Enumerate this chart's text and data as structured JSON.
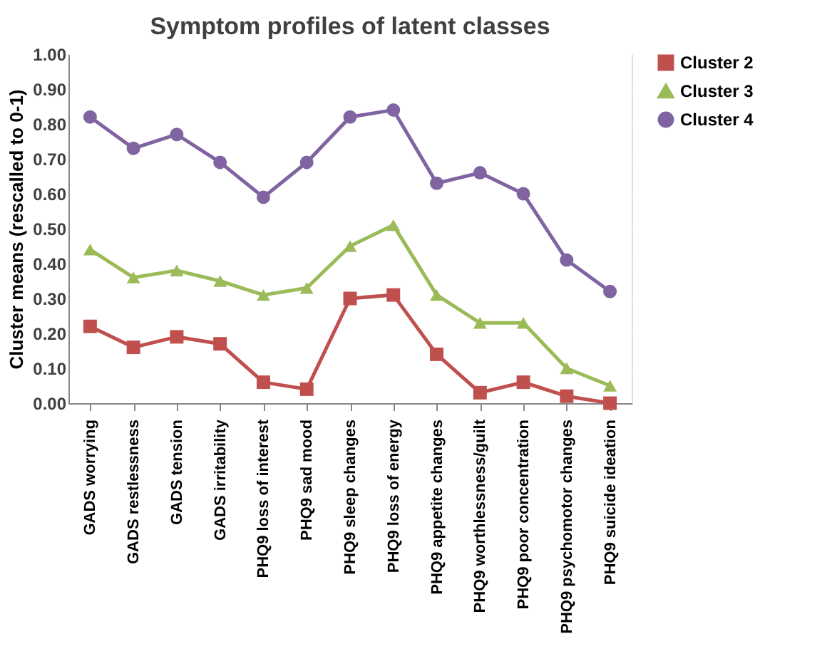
{
  "chart_data": {
    "type": "line",
    "title": "Symptom profiles of latent classes",
    "ylabel": "Cluster means (rescalled to 0-1)",
    "categories": [
      "GADS worrying",
      "GADS restlessness",
      "GADS tension",
      "GADS irritability",
      "PHQ9 loss of interest",
      "PHQ9 sad mood",
      "PHQ9 sleep changes",
      "PHQ9 loss of energy",
      "PHQ9 appetite changes",
      "PHQ9 worthlessness/guilt",
      "PHQ9 poor concentration",
      "PHQ9 psychomotor changes",
      "PHQ9 suicide ideation"
    ],
    "series": [
      {
        "name": "Cluster 2",
        "color": "#c0504d",
        "marker": "square",
        "values": [
          0.22,
          0.16,
          0.19,
          0.17,
          0.06,
          0.04,
          0.3,
          0.31,
          0.14,
          0.03,
          0.06,
          0.02,
          0.0
        ]
      },
      {
        "name": "Cluster 3",
        "color": "#9bbb59",
        "marker": "triangle",
        "values": [
          0.44,
          0.36,
          0.38,
          0.35,
          0.31,
          0.33,
          0.45,
          0.51,
          0.31,
          0.23,
          0.23,
          0.1,
          0.05
        ]
      },
      {
        "name": "Cluster 4",
        "color": "#8064a2",
        "marker": "circle",
        "values": [
          0.82,
          0.73,
          0.77,
          0.69,
          0.59,
          0.69,
          0.82,
          0.84,
          0.63,
          0.66,
          0.6,
          0.41,
          0.32
        ]
      }
    ],
    "ylim": [
      0,
      1
    ],
    "yticks": [
      {
        "value": 0,
        "label": "0.00"
      },
      {
        "value": 0.1,
        "label": "0.10"
      },
      {
        "value": 0.2,
        "label": "0.20"
      },
      {
        "value": 0.3,
        "label": "0.30"
      },
      {
        "value": 0.4,
        "label": "0.40"
      },
      {
        "value": 0.5,
        "label": "0.50"
      },
      {
        "value": 0.6,
        "label": "0.60"
      },
      {
        "value": 0.7,
        "label": "0.70"
      },
      {
        "value": 0.8,
        "label": "0.80"
      },
      {
        "value": 0.9,
        "label": "0.90"
      },
      {
        "value": 1,
        "label": "1.00"
      }
    ],
    "grid": "y",
    "legend": "right"
  }
}
